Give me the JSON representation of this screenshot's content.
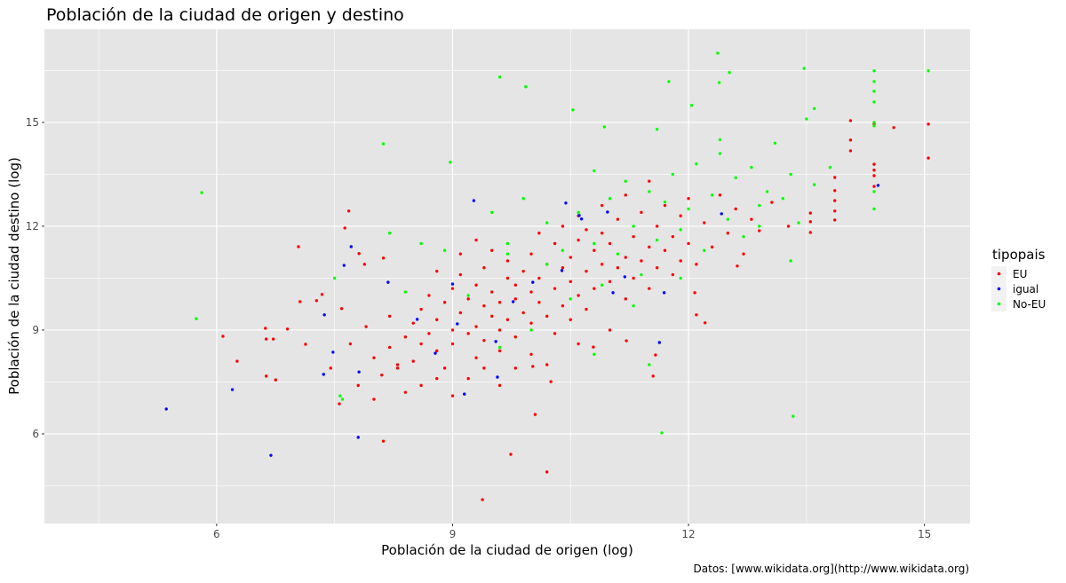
{
  "chart_data": {
    "type": "scatter",
    "title": "Población de la ciudad de origen y destino",
    "xlabel": "Población de la ciudad de origen (log)",
    "ylabel": "Población de la ciudad destino (log)",
    "caption": "Datos: [www.wikidata.org](http://www.wikidata.org)",
    "xlim": [
      3.81,
      15.58
    ],
    "ylim": [
      3.41,
      17.69
    ],
    "x_ticks": [
      6,
      9,
      12,
      15
    ],
    "y_ticks": [
      6,
      9,
      12,
      15
    ],
    "x_tick_labels": [
      "6",
      "9",
      "12",
      "15"
    ],
    "y_tick_labels": [
      "6",
      "9",
      "12",
      "15"
    ],
    "grid": true,
    "panel_background": "#E5E5E5",
    "legend": {
      "title": "tipopais",
      "position": "right"
    },
    "series": [
      {
        "name": "EU",
        "color": "#FF0000",
        "points": [
          [
            6.08,
            8.82
          ],
          [
            6.26,
            8.1
          ],
          [
            6.62,
            9.05
          ],
          [
            6.63,
            8.74
          ],
          [
            6.63,
            7.67
          ],
          [
            6.75,
            7.56
          ],
          [
            6.72,
            8.74
          ],
          [
            6.9,
            9.03
          ],
          [
            7.04,
            11.41
          ],
          [
            7.06,
            9.82
          ],
          [
            7.13,
            8.59
          ],
          [
            7.27,
            9.85
          ],
          [
            7.34,
            10.03
          ],
          [
            7.45,
            7.9
          ],
          [
            7.56,
            6.87
          ],
          [
            7.59,
            9.62
          ],
          [
            7.68,
            12.44
          ],
          [
            7.63,
            11.95
          ],
          [
            7.81,
            11.21
          ],
          [
            7.88,
            10.9
          ],
          [
            8.12,
            11.08
          ],
          [
            8.12,
            5.79
          ],
          [
            9.38,
            4.1
          ],
          [
            9.74,
            5.41
          ],
          [
            10.2,
            4.9
          ],
          [
            10.05,
            6.56
          ],
          [
            10.02,
            7.95
          ],
          [
            10.25,
            7.51
          ],
          [
            10.79,
            8.51
          ],
          [
            11.21,
            8.69
          ],
          [
            11.55,
            7.67
          ],
          [
            11.58,
            8.28
          ],
          [
            12.1,
            9.44
          ],
          [
            12.21,
            9.21
          ],
          [
            12.08,
            10.08
          ],
          [
            14.06,
            14.18
          ],
          [
            14.06,
            14.49
          ],
          [
            14.06,
            15.05
          ],
          [
            14.36,
            14.95
          ],
          [
            14.36,
            13.79
          ],
          [
            14.36,
            13.62
          ],
          [
            14.36,
            13.46
          ],
          [
            14.36,
            13.15
          ],
          [
            14.61,
            14.85
          ],
          [
            15.05,
            14.95
          ],
          [
            15.05,
            13.97
          ],
          [
            13.86,
            13.41
          ],
          [
            13.86,
            13.03
          ],
          [
            13.86,
            12.74
          ],
          [
            13.86,
            12.44
          ],
          [
            13.86,
            12.18
          ],
          [
            13.55,
            12.38
          ],
          [
            13.55,
            12.13
          ],
          [
            13.55,
            11.82
          ],
          [
            13.27,
            12.0
          ],
          [
            12.9,
            11.87
          ],
          [
            12.62,
            10.85
          ],
          [
            13.06,
            12.69
          ],
          [
            8.0,
            8.2
          ],
          [
            8.1,
            7.7
          ],
          [
            8.2,
            8.5
          ],
          [
            8.3,
            7.9
          ],
          [
            8.4,
            8.8
          ],
          [
            8.5,
            9.2
          ],
          [
            8.5,
            8.1
          ],
          [
            8.6,
            9.6
          ],
          [
            8.6,
            7.4
          ],
          [
            8.7,
            8.9
          ],
          [
            8.7,
            10.0
          ],
          [
            8.8,
            9.3
          ],
          [
            8.8,
            8.4
          ],
          [
            8.9,
            9.8
          ],
          [
            8.9,
            7.9
          ],
          [
            9.0,
            10.2
          ],
          [
            9.0,
            9.0
          ],
          [
            9.0,
            8.6
          ],
          [
            9.1,
            9.5
          ],
          [
            9.1,
            10.6
          ],
          [
            9.2,
            8.9
          ],
          [
            9.2,
            9.9
          ],
          [
            9.3,
            10.3
          ],
          [
            9.3,
            9.1
          ],
          [
            9.3,
            8.2
          ],
          [
            9.4,
            9.7
          ],
          [
            9.4,
            10.8
          ],
          [
            9.4,
            8.7
          ],
          [
            9.5,
            9.4
          ],
          [
            9.5,
            10.1
          ],
          [
            9.5,
            11.3
          ],
          [
            9.6,
            9.0
          ],
          [
            9.6,
            9.8
          ],
          [
            9.6,
            8.4
          ],
          [
            9.7,
            10.5
          ],
          [
            9.7,
            9.3
          ],
          [
            9.7,
            11.0
          ],
          [
            9.8,
            9.9
          ],
          [
            9.8,
            10.3
          ],
          [
            9.8,
            8.8
          ],
          [
            9.9,
            10.7
          ],
          [
            9.9,
            9.5
          ],
          [
            10.0,
            10.1
          ],
          [
            10.0,
            11.2
          ],
          [
            10.0,
            9.2
          ],
          [
            10.1,
            10.5
          ],
          [
            10.1,
            9.8
          ],
          [
            10.1,
            11.8
          ],
          [
            10.2,
            10.9
          ],
          [
            10.2,
            9.4
          ],
          [
            10.3,
            10.2
          ],
          [
            10.3,
            11.5
          ],
          [
            10.3,
            8.9
          ],
          [
            10.4,
            10.8
          ],
          [
            10.4,
            9.7
          ],
          [
            10.4,
            12.0
          ],
          [
            10.5,
            11.1
          ],
          [
            10.5,
            10.4
          ],
          [
            10.5,
            9.3
          ],
          [
            10.6,
            11.6
          ],
          [
            10.6,
            10.0
          ],
          [
            10.7,
            10.7
          ],
          [
            10.7,
            11.9
          ],
          [
            10.7,
            9.6
          ],
          [
            10.8,
            11.3
          ],
          [
            10.8,
            10.2
          ],
          [
            10.9,
            11.8
          ],
          [
            10.9,
            10.9
          ],
          [
            11.0,
            10.4
          ],
          [
            11.0,
            11.5
          ],
          [
            11.1,
            12.2
          ],
          [
            11.1,
            10.8
          ],
          [
            11.2,
            11.1
          ],
          [
            11.2,
            9.9
          ],
          [
            11.3,
            11.7
          ],
          [
            11.3,
            10.5
          ],
          [
            11.4,
            12.4
          ],
          [
            11.4,
            11.0
          ],
          [
            11.5,
            11.4
          ],
          [
            11.5,
            10.2
          ],
          [
            11.6,
            12.0
          ],
          [
            11.6,
            10.8
          ],
          [
            11.7,
            11.3
          ],
          [
            11.7,
            12.6
          ],
          [
            11.8,
            11.7
          ],
          [
            11.8,
            10.6
          ],
          [
            11.9,
            12.3
          ],
          [
            11.9,
            11.0
          ],
          [
            12.0,
            11.5
          ],
          [
            12.0,
            12.8
          ],
          [
            12.1,
            10.9
          ],
          [
            12.2,
            12.1
          ],
          [
            12.3,
            11.4
          ],
          [
            12.4,
            12.9
          ],
          [
            12.5,
            11.8
          ],
          [
            12.6,
            12.5
          ],
          [
            12.7,
            11.2
          ],
          [
            12.8,
            12.2
          ],
          [
            7.7,
            8.6
          ],
          [
            7.8,
            7.4
          ],
          [
            7.9,
            9.1
          ],
          [
            8.0,
            7.0
          ],
          [
            8.2,
            9.4
          ],
          [
            8.3,
            8.0
          ],
          [
            8.4,
            7.2
          ],
          [
            8.6,
            8.6
          ],
          [
            8.8,
            7.6
          ],
          [
            9.0,
            7.1
          ],
          [
            9.2,
            7.6
          ],
          [
            9.4,
            7.9
          ],
          [
            9.6,
            7.4
          ],
          [
            9.8,
            7.9
          ],
          [
            10.0,
            8.3
          ],
          [
            10.2,
            8.0
          ],
          [
            9.1,
            11.2
          ],
          [
            9.3,
            11.6
          ],
          [
            8.8,
            10.7
          ],
          [
            10.6,
            12.3
          ],
          [
            10.9,
            12.6
          ],
          [
            11.2,
            12.9
          ],
          [
            11.5,
            13.3
          ],
          [
            11.0,
            9.0
          ],
          [
            10.6,
            8.6
          ]
        ]
      },
      {
        "name": "igual",
        "color": "#0000FF",
        "points": [
          [
            5.36,
            6.72
          ],
          [
            6.2,
            7.28
          ],
          [
            6.69,
            5.38
          ],
          [
            7.37,
            9.44
          ],
          [
            7.48,
            8.36
          ],
          [
            7.62,
            10.87
          ],
          [
            7.71,
            11.41
          ],
          [
            7.81,
            7.79
          ],
          [
            7.8,
            5.9
          ],
          [
            7.36,
            7.72
          ],
          [
            8.18,
            10.38
          ],
          [
            9.27,
            12.74
          ],
          [
            9.15,
            7.15
          ],
          [
            9.57,
            7.64
          ],
          [
            10.44,
            12.67
          ],
          [
            10.61,
            12.31
          ],
          [
            10.64,
            12.21
          ],
          [
            10.97,
            12.41
          ],
          [
            11.63,
            8.64
          ],
          [
            11.69,
            10.08
          ],
          [
            12.42,
            12.36
          ],
          [
            14.41,
            13.18
          ],
          [
            10.02,
            10.38
          ],
          [
            10.39,
            10.72
          ],
          [
            9.0,
            10.33
          ],
          [
            8.55,
            9.31
          ],
          [
            8.78,
            8.33
          ],
          [
            9.06,
            9.18
          ],
          [
            9.55,
            8.67
          ],
          [
            9.77,
            9.82
          ],
          [
            11.04,
            10.08
          ],
          [
            11.19,
            10.54
          ]
        ]
      },
      {
        "name": "No-EU",
        "color": "#00FF00",
        "points": [
          [
            5.74,
            9.33
          ],
          [
            5.81,
            12.97
          ],
          [
            8.12,
            14.38
          ],
          [
            9.6,
            16.31
          ],
          [
            9.93,
            16.03
          ],
          [
            8.97,
            13.85
          ],
          [
            10.53,
            15.36
          ],
          [
            10.93,
            14.87
          ],
          [
            12.37,
            17.0
          ],
          [
            12.52,
            16.44
          ],
          [
            12.39,
            16.15
          ],
          [
            11.75,
            16.18
          ],
          [
            12.04,
            15.49
          ],
          [
            13.47,
            16.56
          ],
          [
            14.36,
            16.49
          ],
          [
            15.05,
            16.49
          ],
          [
            14.36,
            16.18
          ],
          [
            14.36,
            15.9
          ],
          [
            14.36,
            15.59
          ],
          [
            13.33,
            6.51
          ],
          [
            11.66,
            6.03
          ],
          [
            7.57,
            7.1
          ],
          [
            10.6,
            12.4
          ],
          [
            10.8,
            11.5
          ],
          [
            11.0,
            12.8
          ],
          [
            11.1,
            11.2
          ],
          [
            11.2,
            13.3
          ],
          [
            11.3,
            12.0
          ],
          [
            11.4,
            10.6
          ],
          [
            11.5,
            13.0
          ],
          [
            11.6,
            11.6
          ],
          [
            11.7,
            12.7
          ],
          [
            11.8,
            13.5
          ],
          [
            11.9,
            11.9
          ],
          [
            12.0,
            12.5
          ],
          [
            12.1,
            13.8
          ],
          [
            12.2,
            11.3
          ],
          [
            12.3,
            12.9
          ],
          [
            12.4,
            14.1
          ],
          [
            12.5,
            12.2
          ],
          [
            12.6,
            13.4
          ],
          [
            12.7,
            11.7
          ],
          [
            12.8,
            13.7
          ],
          [
            12.9,
            12.6
          ],
          [
            13.0,
            13.0
          ],
          [
            13.1,
            14.4
          ],
          [
            13.2,
            12.8
          ],
          [
            13.3,
            13.5
          ],
          [
            13.4,
            12.1
          ],
          [
            13.6,
            13.2
          ],
          [
            13.8,
            13.7
          ],
          [
            10.2,
            10.9
          ],
          [
            10.4,
            11.3
          ],
          [
            10.5,
            9.9
          ],
          [
            10.9,
            10.3
          ],
          [
            11.3,
            9.7
          ],
          [
            9.7,
            11.5
          ],
          [
            9.5,
            12.4
          ],
          [
            9.9,
            12.8
          ],
          [
            10.2,
            12.1
          ],
          [
            10.8,
            13.6
          ],
          [
            11.6,
            14.8
          ],
          [
            12.4,
            14.5
          ],
          [
            13.5,
            15.1
          ],
          [
            13.6,
            15.4
          ],
          [
            12.9,
            12.0
          ],
          [
            13.3,
            11.0
          ],
          [
            14.36,
            13.0
          ],
          [
            14.36,
            12.5
          ],
          [
            14.36,
            14.9
          ],
          [
            14.36,
            15.0
          ],
          [
            8.4,
            10.1
          ],
          [
            8.9,
            11.3
          ],
          [
            9.2,
            10.0
          ],
          [
            9.6,
            8.5
          ],
          [
            10.0,
            9.0
          ],
          [
            10.8,
            8.3
          ],
          [
            11.9,
            10.5
          ],
          [
            11.5,
            8.0
          ],
          [
            9.7,
            11.2
          ],
          [
            7.6,
            7.0
          ],
          [
            7.5,
            10.5
          ],
          [
            8.2,
            11.8
          ],
          [
            8.6,
            11.5
          ]
        ]
      }
    ]
  }
}
